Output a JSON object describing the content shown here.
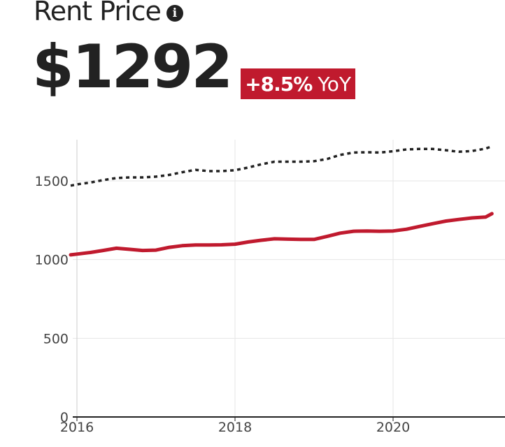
{
  "header": {
    "title": "Rent Price",
    "info_icon": "info-icon",
    "price": "$1292",
    "change": "+8.5%",
    "change_suffix": "YoY",
    "badge_color": "#c01a2e"
  },
  "chart_data": {
    "type": "line",
    "title": "",
    "xlabel": "",
    "ylabel": "",
    "xlim": [
      2015.92,
      2021.42
    ],
    "ylim": [
      0,
      1750
    ],
    "x_ticks": [
      2016,
      2018,
      2020
    ],
    "y_ticks": [
      0,
      500,
      1000,
      1500
    ],
    "grid": true,
    "legend": "none",
    "series": [
      {
        "color": "#c01a2e",
        "style": "solid",
        "x": [
          2015.92,
          2016.0,
          2016.17,
          2016.33,
          2016.5,
          2016.67,
          2016.83,
          2017.0,
          2017.17,
          2017.33,
          2017.5,
          2017.67,
          2017.83,
          2018.0,
          2018.17,
          2018.33,
          2018.5,
          2018.67,
          2018.83,
          2019.0,
          2019.17,
          2019.33,
          2019.5,
          2019.67,
          2019.83,
          2020.0,
          2020.17,
          2020.33,
          2020.5,
          2020.67,
          2020.83,
          2021.0,
          2021.17,
          2021.25
        ],
        "y": [
          1030,
          1035,
          1045,
          1058,
          1072,
          1065,
          1058,
          1060,
          1078,
          1088,
          1093,
          1093,
          1094,
          1098,
          1112,
          1123,
          1132,
          1130,
          1128,
          1128,
          1148,
          1168,
          1180,
          1182,
          1180,
          1182,
          1193,
          1210,
          1228,
          1245,
          1255,
          1265,
          1270,
          1292
        ]
      },
      {
        "color": "#222222",
        "style": "dotted",
        "x": [
          2015.92,
          2016.0,
          2016.17,
          2016.33,
          2016.5,
          2016.67,
          2016.83,
          2017.0,
          2017.17,
          2017.33,
          2017.5,
          2017.67,
          2017.83,
          2018.0,
          2018.17,
          2018.33,
          2018.5,
          2018.67,
          2018.83,
          2019.0,
          2019.17,
          2019.33,
          2019.5,
          2019.67,
          2019.83,
          2020.0,
          2020.17,
          2020.33,
          2020.5,
          2020.67,
          2020.83,
          2021.0,
          2021.17,
          2021.25
        ],
        "y": [
          1470,
          1478,
          1490,
          1505,
          1518,
          1522,
          1522,
          1527,
          1538,
          1555,
          1570,
          1562,
          1562,
          1568,
          1585,
          1605,
          1622,
          1622,
          1622,
          1625,
          1640,
          1665,
          1680,
          1682,
          1680,
          1688,
          1700,
          1703,
          1703,
          1695,
          1685,
          1690,
          1705,
          1720
        ]
      }
    ]
  }
}
